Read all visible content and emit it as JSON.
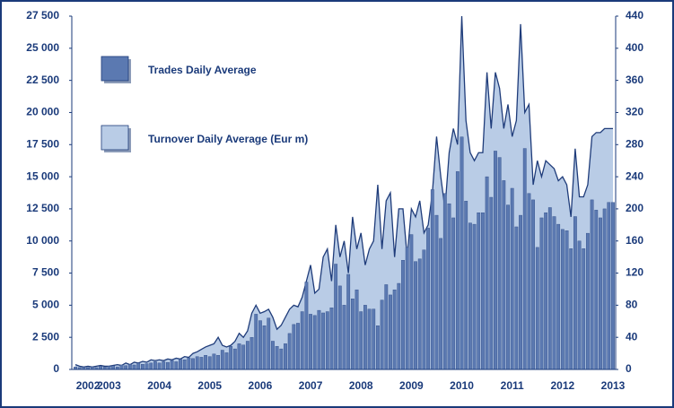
{
  "chart_data": {
    "type": "bar",
    "categories": [
      null,
      null,
      null,
      "2002",
      null,
      null,
      null,
      null,
      "2003",
      null,
      null,
      null,
      null,
      null,
      null,
      null,
      null,
      null,
      null,
      null,
      "2004",
      null,
      null,
      null,
      null,
      null,
      null,
      null,
      null,
      null,
      null,
      null,
      "2005",
      null,
      null,
      null,
      null,
      null,
      null,
      null,
      null,
      null,
      null,
      null,
      "2006",
      null,
      null,
      null,
      null,
      null,
      null,
      null,
      null,
      null,
      null,
      null,
      "2007",
      null,
      null,
      null,
      null,
      null,
      null,
      null,
      null,
      null,
      null,
      null,
      "2008",
      null,
      null,
      null,
      null,
      null,
      null,
      null,
      null,
      null,
      null,
      null,
      "2009",
      null,
      null,
      null,
      null,
      null,
      null,
      null,
      null,
      null,
      null,
      null,
      "2010",
      null,
      null,
      null,
      null,
      null,
      null,
      null,
      null,
      null,
      null,
      null,
      "2011",
      null,
      null,
      null,
      null,
      null,
      null,
      null,
      null,
      null,
      null,
      null,
      "2012",
      null,
      null,
      null,
      null,
      null,
      null,
      null,
      null,
      null,
      null,
      null,
      "2013"
    ],
    "series": [
      {
        "name": "Trades Daily Average",
        "type": "bar",
        "color": "#5b79b1",
        "values": [
          200,
          150,
          180,
          150,
          200,
          150,
          250,
          200,
          250,
          300,
          200,
          350,
          300,
          400,
          350,
          500,
          400,
          450,
          500,
          600,
          500,
          600,
          550,
          700,
          600,
          800,
          750,
          900,
          850,
          1000,
          950,
          1100,
          1000,
          1200,
          1100,
          1500,
          1300,
          1800,
          1600,
          2000,
          1900,
          2200,
          2500,
          4300,
          3800,
          3400,
          4000,
          2200,
          1800,
          1600,
          2000,
          2800,
          3500,
          3600,
          4500,
          6800,
          4300,
          4200,
          4600,
          4400,
          4500,
          4800,
          8200,
          6500,
          5000,
          7400,
          5500,
          6200,
          4500,
          5000,
          4700,
          4700,
          3400,
          5400,
          6600,
          5800,
          6200,
          6700,
          8500,
          9500,
          10500,
          8400,
          8600,
          9300,
          11000,
          14000,
          12000,
          10200,
          13700,
          12900,
          11800,
          15400,
          18100,
          13100,
          11400,
          11300,
          12200,
          12200,
          15000,
          13400,
          17000,
          16500,
          14700,
          12800,
          14100,
          11100,
          12000,
          17200,
          13700,
          13200,
          9500,
          11800,
          12200,
          12600,
          11900,
          11300,
          10900,
          10800,
          9400,
          11900,
          10000,
          9400,
          10600,
          13200,
          12400,
          11800,
          12500,
          13000,
          13000
        ]
      },
      {
        "name": "Turnover Daily Average (Eur m)",
        "type": "area",
        "axis": "y2",
        "color": "#b9cce6",
        "values": [
          6,
          4,
          3,
          4,
          3,
          4,
          5,
          4,
          4,
          5,
          6,
          5,
          8,
          6,
          9,
          8,
          10,
          9,
          12,
          11,
          12,
          11,
          13,
          12,
          14,
          13,
          16,
          15,
          20,
          22,
          25,
          28,
          30,
          32,
          40,
          30,
          28,
          30,
          35,
          45,
          40,
          48,
          70,
          80,
          70,
          72,
          75,
          65,
          50,
          55,
          65,
          75,
          80,
          78,
          90,
          110,
          130,
          95,
          100,
          140,
          150,
          110,
          180,
          140,
          160,
          120,
          190,
          150,
          170,
          130,
          150,
          160,
          230,
          150,
          210,
          220,
          140,
          200,
          200,
          140,
          200,
          190,
          210,
          170,
          180,
          220,
          290,
          240,
          200,
          270,
          300,
          280,
          440,
          310,
          270,
          260,
          270,
          270,
          370,
          300,
          370,
          350,
          300,
          330,
          290,
          310,
          430,
          320,
          330,
          230,
          260,
          240,
          260,
          255,
          250,
          235,
          240,
          230,
          190,
          275,
          215,
          215,
          230,
          290,
          295,
          295,
          300,
          300,
          300
        ]
      }
    ],
    "ylim": [
      0,
      27500
    ],
    "yticks": [
      0,
      {
        "value": 2500,
        "label": "2 500"
      },
      {
        "value": 5000,
        "label": "5 000"
      },
      {
        "value": 7500,
        "label": "7 500"
      },
      {
        "value": 10000,
        "label": "10 000"
      },
      {
        "value": 12500,
        "label": "12 500"
      },
      {
        "value": 15000,
        "label": "15 000"
      },
      {
        "value": 17500,
        "label": "17 500"
      },
      {
        "value": 20000,
        "label": "20 000"
      },
      {
        "value": 22500,
        "label": "22 500"
      },
      {
        "value": 25000,
        "label": "25 000"
      },
      {
        "value": 27500,
        "label": "27 500"
      }
    ],
    "y2lim": [
      0,
      440
    ],
    "y2ticks": [
      0,
      40,
      80,
      120,
      160,
      200,
      240,
      280,
      320,
      360,
      400,
      440
    ]
  }
}
